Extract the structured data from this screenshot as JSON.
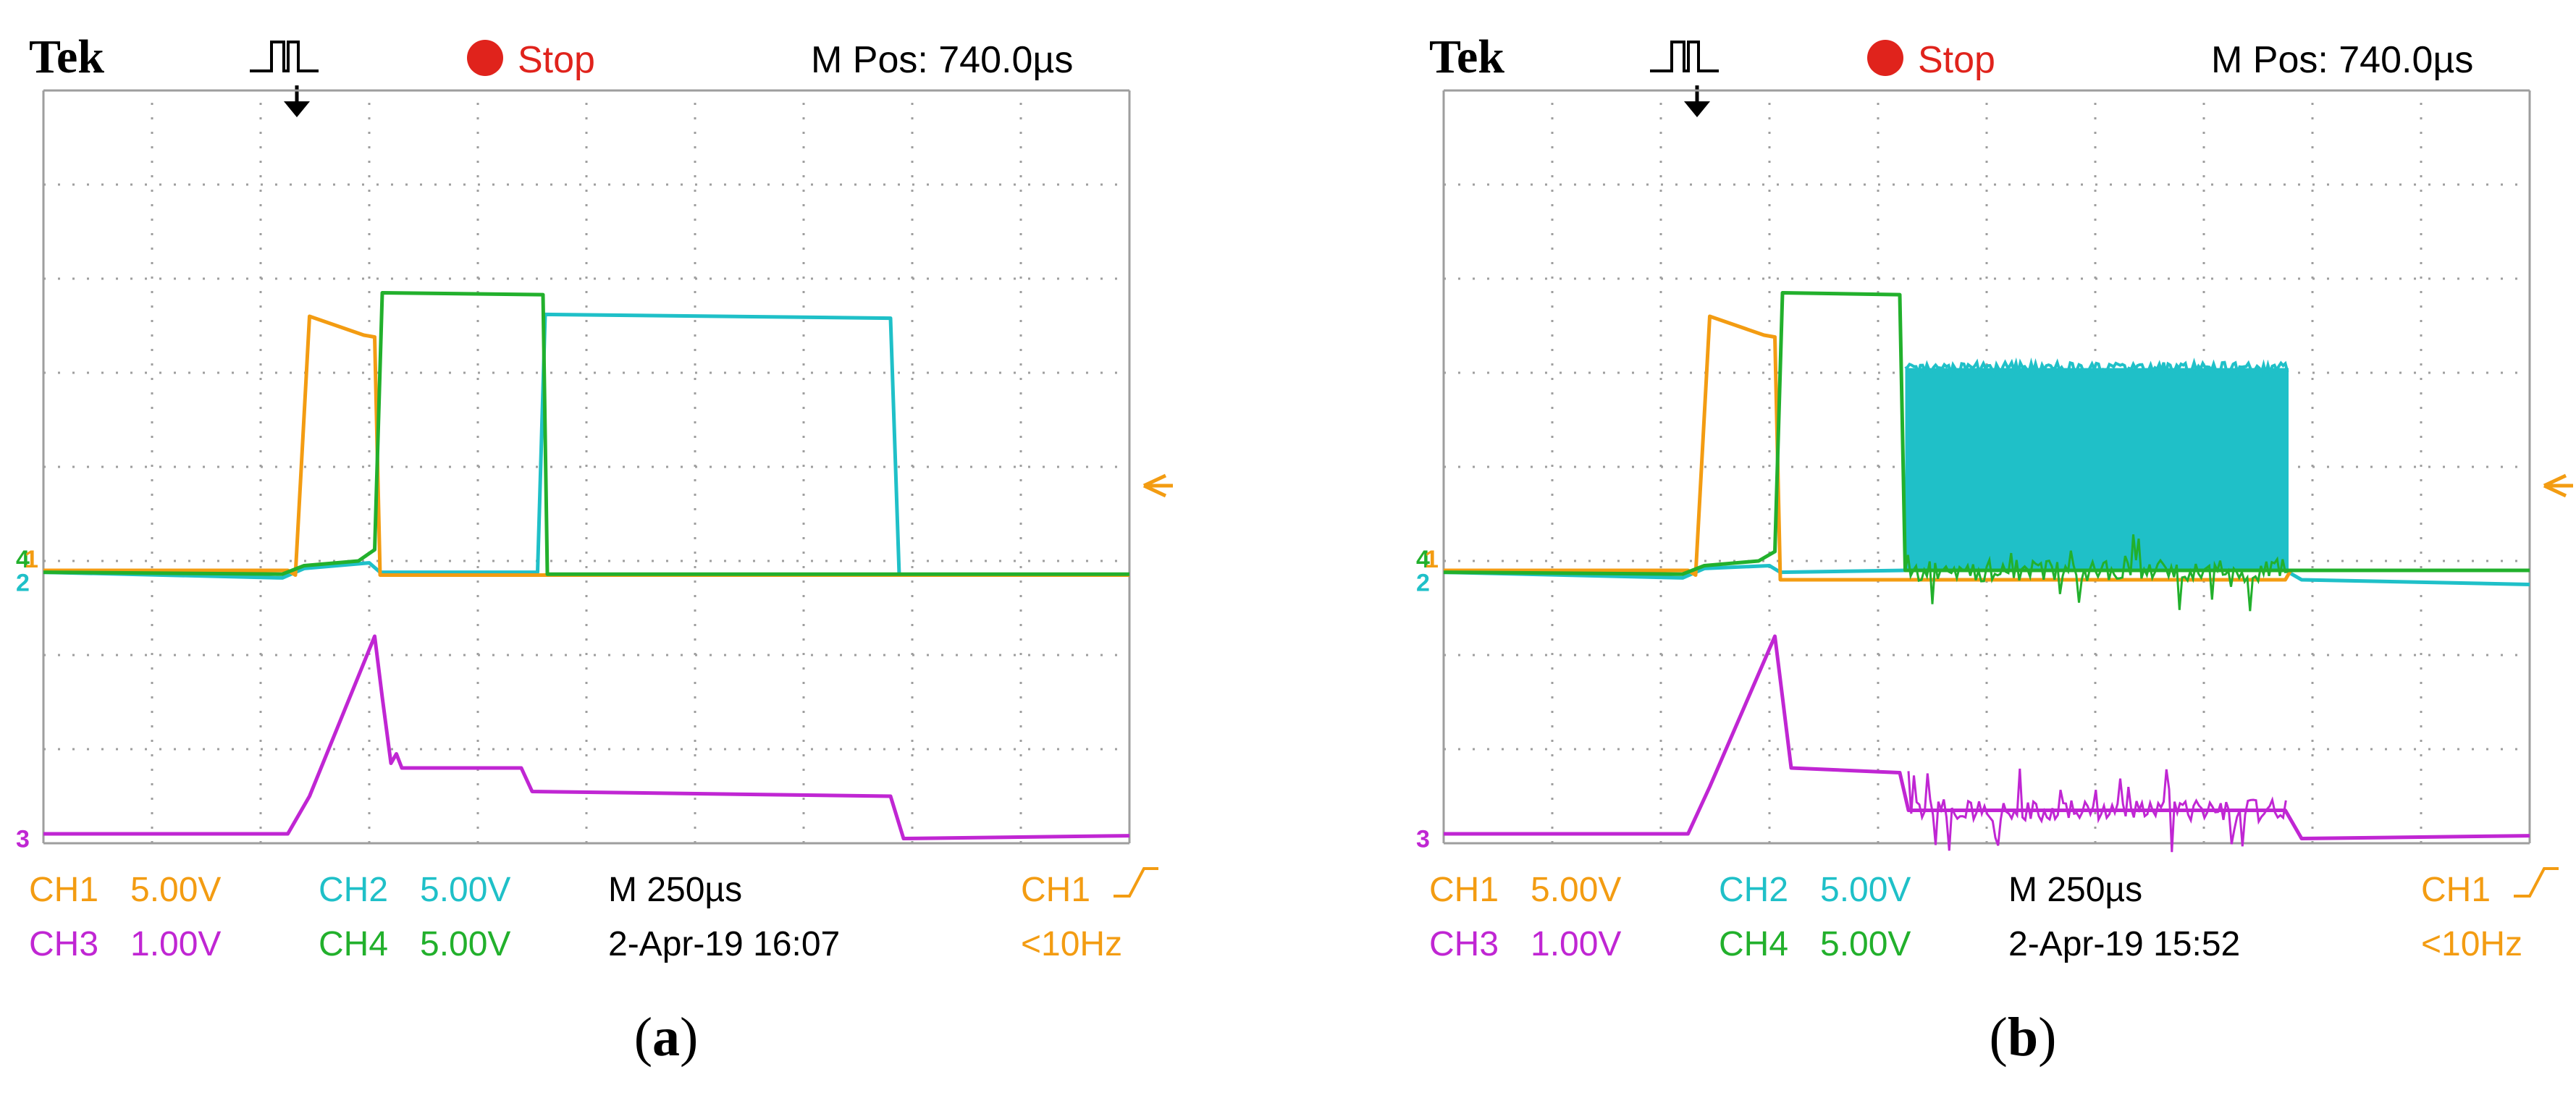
{
  "colors": {
    "ch1": "#f39c12",
    "ch2": "#1fc0c8",
    "ch3": "#c026d3",
    "ch4": "#22b02c",
    "grid": "#9e9e9e",
    "stop": "#e0231c",
    "text": "#000000"
  },
  "icons": [
    "trigger-pulse-icon",
    "trigger-position-arrow-icon",
    "stop-dot-icon",
    "trigger-level-arrow-icon",
    "ch1-ground-marker",
    "ch2-ground-marker",
    "ch3-ground-marker",
    "ch4-ground-marker",
    "rising-edge-icon"
  ],
  "panels": [
    {
      "caption_letter": "a",
      "header": {
        "brand": "Tek",
        "status": "Stop",
        "mpos": "M Pos: 740.0µs"
      },
      "readout": {
        "ch1": "CH1",
        "ch1_scale": "5.00V",
        "ch2": "CH2",
        "ch2_scale": "5.00V",
        "ch3": "CH3",
        "ch3_scale": "1.00V",
        "ch4": "CH4",
        "ch4_scale": "5.00V",
        "timebase": "M 250µs",
        "datetime": "2-Apr-19 16:07",
        "trigger_src": "CH1",
        "trigger_freq": "<10Hz"
      }
    },
    {
      "caption_letter": "b",
      "header": {
        "brand": "Tek",
        "status": "Stop",
        "mpos": "M Pos: 740.0µs"
      },
      "readout": {
        "ch1": "CH1",
        "ch1_scale": "5.00V",
        "ch2": "CH2",
        "ch2_scale": "5.00V",
        "ch3": "CH3",
        "ch3_scale": "1.00V",
        "ch4": "CH4",
        "ch4_scale": "5.00V",
        "timebase": "M 250µs",
        "datetime": "2-Apr-19 15:52",
        "trigger_src": "CH1",
        "trigger_freq": "<10Hz"
      }
    }
  ],
  "chart_data": [
    {
      "type": "line",
      "panel": "a",
      "x_divisions": [
        0,
        10
      ],
      "y_divisions": [
        0,
        8
      ],
      "grid": true,
      "series": [
        {
          "name": "CH1",
          "color": "#f39c12",
          "points": [
            [
              0,
              2.9
            ],
            [
              2.25,
              2.9
            ],
            [
              2.32,
              2.85
            ],
            [
              2.45,
              5.6
            ],
            [
              2.95,
              5.4
            ],
            [
              3.05,
              5.38
            ],
            [
              3.1,
              2.85
            ],
            [
              10,
              2.85
            ]
          ]
        },
        {
          "name": "CH2",
          "color": "#1fc0c8",
          "points": [
            [
              0,
              2.88
            ],
            [
              2.2,
              2.82
            ],
            [
              2.4,
              2.92
            ],
            [
              3.0,
              2.98
            ],
            [
              3.1,
              2.88
            ],
            [
              4.55,
              2.88
            ],
            [
              4.62,
              5.62
            ],
            [
              7.8,
              5.58
            ],
            [
              7.88,
              2.85
            ],
            [
              10,
              2.85
            ]
          ]
        },
        {
          "name": "CH4",
          "color": "#22b02c",
          "points": [
            [
              0,
              2.88
            ],
            [
              2.2,
              2.86
            ],
            [
              2.4,
              2.95
            ],
            [
              2.9,
              3.0
            ],
            [
              3.05,
              3.12
            ],
            [
              3.12,
              5.85
            ],
            [
              4.6,
              5.83
            ],
            [
              4.64,
              2.86
            ],
            [
              10,
              2.86
            ]
          ]
        },
        {
          "name": "CH3",
          "color": "#c026d3",
          "points": [
            [
              0,
              0.1
            ],
            [
              2.25,
              0.1
            ],
            [
              2.45,
              0.5
            ],
            [
              3.05,
              2.2
            ],
            [
              3.12,
              1.55
            ],
            [
              3.2,
              0.85
            ],
            [
              3.25,
              0.95
            ],
            [
              3.3,
              0.8
            ],
            [
              4.4,
              0.8
            ],
            [
              4.5,
              0.55
            ],
            [
              7.8,
              0.5
            ],
            [
              7.92,
              0.05
            ],
            [
              10,
              0.08
            ]
          ]
        }
      ]
    },
    {
      "type": "line",
      "panel": "b",
      "x_divisions": [
        0,
        10
      ],
      "y_divisions": [
        0,
        8
      ],
      "grid": true,
      "series": [
        {
          "name": "CH1",
          "color": "#f39c12",
          "points": [
            [
              0,
              2.9
            ],
            [
              2.25,
              2.9
            ],
            [
              2.32,
              2.85
            ],
            [
              2.45,
              5.6
            ],
            [
              2.95,
              5.4
            ],
            [
              3.05,
              5.38
            ],
            [
              3.1,
              2.8
            ],
            [
              7.75,
              2.8
            ],
            [
              7.8,
              2.9
            ],
            [
              10,
              2.9
            ]
          ]
        },
        {
          "name": "CH2",
          "color": "#1fc0c8",
          "points": [
            [
              0,
              2.88
            ],
            [
              2.2,
              2.82
            ],
            [
              2.4,
              2.92
            ],
            [
              3.0,
              2.95
            ],
            [
              3.1,
              2.88
            ],
            [
              4.25,
              2.9
            ],
            [
              7.75,
              2.9
            ],
            [
              7.9,
              2.8
            ],
            [
              10,
              2.75
            ]
          ],
          "burst": {
            "x_start": 4.25,
            "x_end": 7.78,
            "y_low": 2.9,
            "y_high": 5.05
          }
        },
        {
          "name": "CH4",
          "color": "#22b02c",
          "points": [
            [
              0,
              2.88
            ],
            [
              2.2,
              2.86
            ],
            [
              2.4,
              2.95
            ],
            [
              2.9,
              3.0
            ],
            [
              3.05,
              3.1
            ],
            [
              3.12,
              5.85
            ],
            [
              4.2,
              5.83
            ],
            [
              4.25,
              2.9
            ],
            [
              10,
              2.9
            ]
          ],
          "noise": {
            "x_start": 4.25,
            "x_end": 7.78,
            "amplitude_divs": 0.3
          }
        },
        {
          "name": "CH3",
          "color": "#c026d3",
          "points": [
            [
              0,
              0.1
            ],
            [
              2.25,
              0.1
            ],
            [
              2.45,
              0.6
            ],
            [
              3.05,
              2.2
            ],
            [
              3.12,
              1.55
            ],
            [
              3.2,
              0.8
            ],
            [
              4.2,
              0.75
            ],
            [
              4.28,
              0.35
            ],
            [
              7.75,
              0.35
            ],
            [
              7.9,
              0.05
            ],
            [
              10,
              0.08
            ]
          ],
          "noise": {
            "x_start": 4.28,
            "x_end": 7.78,
            "amplitude_divs": 0.3
          }
        }
      ]
    }
  ]
}
